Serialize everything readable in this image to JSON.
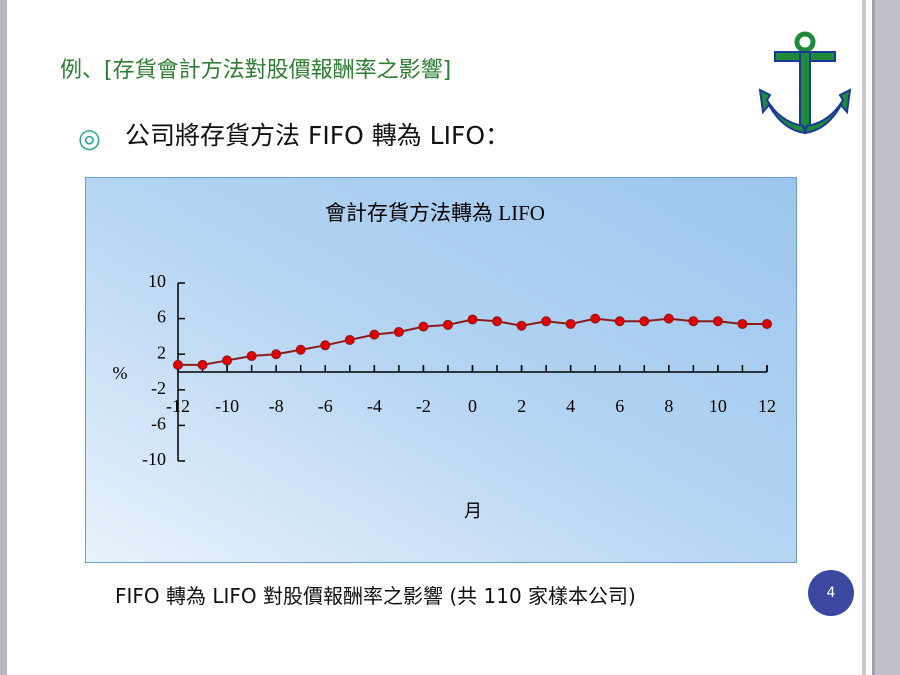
{
  "slide": {
    "title": "例、[存貨會計方法對股價報酬率之影響]",
    "bullet_symbol": "◎",
    "bullet": "公司將存貨方法 FIFO 轉為 LIFO：",
    "caption": "FIFO 轉為 LIFO 對股價報酬率之影響 (共 110 家樣本公司)",
    "page_number": "4"
  },
  "chart_data": {
    "type": "line",
    "title": "會計存貨方法轉為 LIFO",
    "xlabel": "月",
    "ylabel": "%",
    "x": [
      -12,
      -11,
      -10,
      -9,
      -8,
      -7,
      -6,
      -5,
      -4,
      -3,
      -2,
      -1,
      0,
      1,
      2,
      3,
      4,
      5,
      6,
      7,
      8,
      9,
      10,
      11,
      12
    ],
    "values": [
      0.8,
      0.8,
      1.3,
      1.8,
      2.0,
      2.5,
      3.0,
      3.6,
      4.2,
      4.5,
      5.1,
      5.3,
      5.9,
      5.7,
      5.2,
      5.7,
      5.4,
      6.0,
      5.7,
      5.7,
      6.0,
      5.7,
      5.7,
      5.4,
      5.4
    ],
    "color": "#8b1a1a",
    "marker_color": "#e00000",
    "xlim": [
      -12,
      12
    ],
    "xticks": [
      -12,
      -10,
      -8,
      -6,
      -4,
      -2,
      0,
      2,
      4,
      6,
      8,
      10,
      12
    ],
    "ylim": [
      -10,
      10
    ],
    "yticks": [
      -10,
      -6,
      -2,
      2,
      6,
      10
    ]
  }
}
